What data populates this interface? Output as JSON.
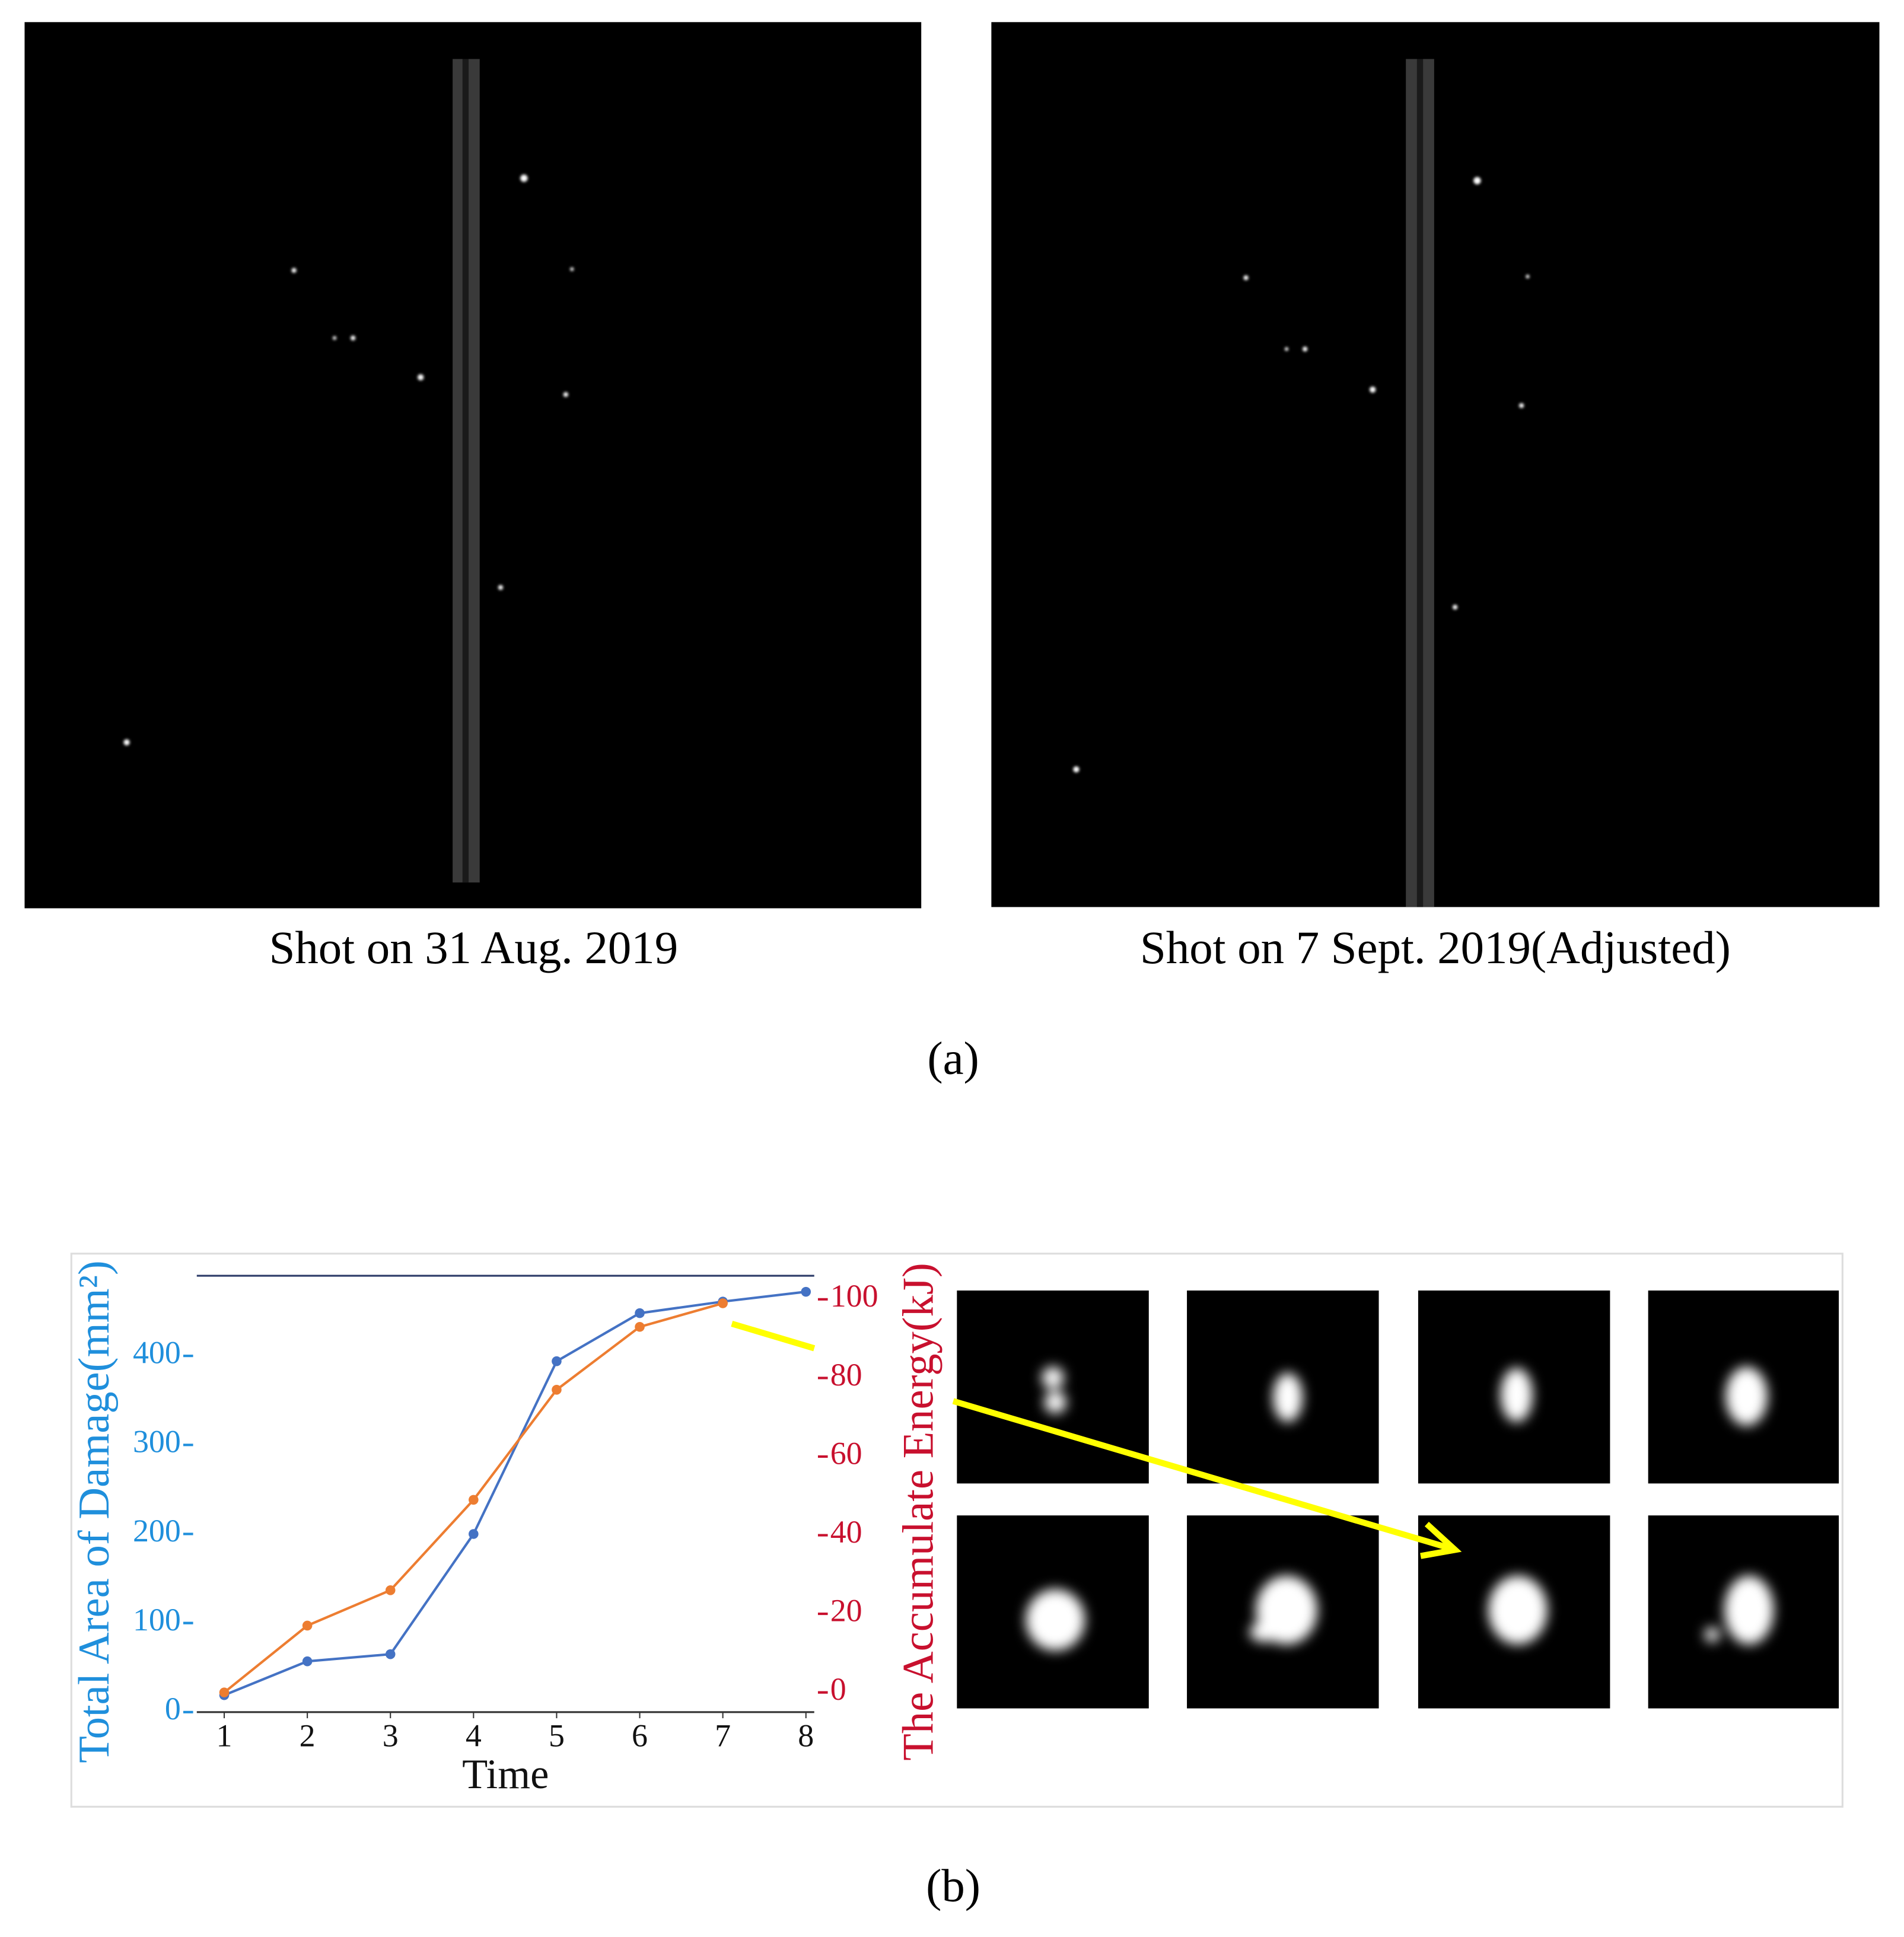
{
  "panel_a": {
    "left_caption": "Shot on 31 Aug. 2019",
    "right_caption": "Shot on 7 Sept. 2019(Adjusted)",
    "label": "(a)"
  },
  "panel_b": {
    "label": "(b)"
  },
  "chart_data": {
    "type": "line",
    "x_label": "Time",
    "y_label": "Total Area of Damage(mm²)",
    "y2_label": "The Accumulate Energy(kJ)",
    "x": [
      1,
      2,
      3,
      4,
      5,
      6,
      7,
      8
    ],
    "xlim": [
      0.67,
      8.1
    ],
    "xticks": [
      1,
      2,
      3,
      4,
      5,
      6,
      7,
      8
    ],
    "ylim": [
      0,
      490
    ],
    "yticks": [
      0,
      100,
      200,
      300,
      400
    ],
    "y2lim": [
      -5,
      106
    ],
    "y2ticks": [
      0,
      20,
      40,
      60,
      80,
      100
    ],
    "y_color": "#1f8fdc",
    "y2_color": "#c8102e",
    "series": [
      {
        "name": "Total Area of Damage",
        "color": "#4472c4",
        "values": [
          19,
          57,
          65,
          200,
          394,
          448,
          461,
          472
        ]
      },
      {
        "name": "The Accumulate Energy",
        "color": "#ed7d31",
        "axis": "y2",
        "values": [
          0,
          17,
          26,
          49,
          77,
          93,
          99,
          null
        ]
      }
    ]
  }
}
